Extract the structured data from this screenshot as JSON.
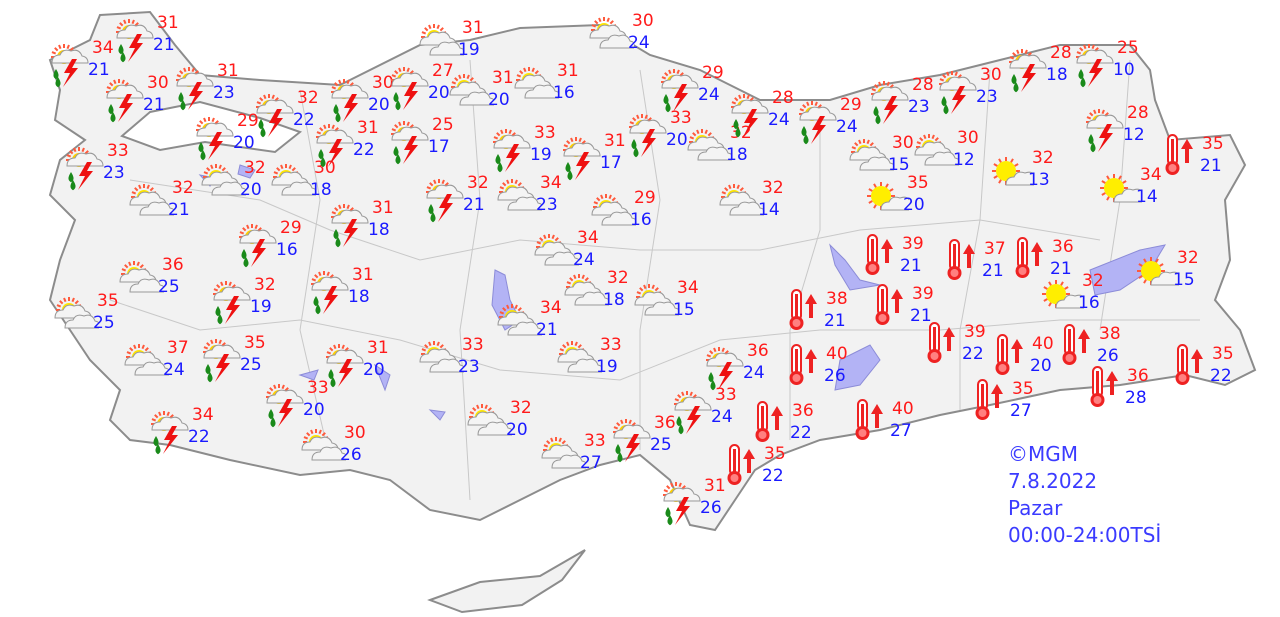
{
  "colors": {
    "high": "#ff1a1a",
    "low": "#1a1aff",
    "land": "#f2f2f2",
    "border": "#a0a0a0",
    "water": "#b3b3f5",
    "footer": "#3b3bff"
  },
  "icons": {
    "storm": "sun-cloud-thunder-rain-icon",
    "partly": "partly-cloudy-icon",
    "sunny": "mostly-sunny-icon",
    "hot": "hot-thermometer-icon"
  },
  "footer": {
    "copyright": "©MGM",
    "date": "7.8.2022",
    "day": "Pazar",
    "period": "00:00-24:00TSİ"
  },
  "stations": [
    {
      "type": "storm",
      "high": "34",
      "low": "21"
    },
    {
      "type": "storm",
      "high": "31",
      "low": "21"
    },
    {
      "type": "storm",
      "high": "30",
      "low": "21"
    },
    {
      "type": "storm",
      "high": "31",
      "low": "23"
    },
    {
      "type": "storm",
      "high": "29",
      "low": "20"
    },
    {
      "type": "storm",
      "high": "32",
      "low": "22"
    },
    {
      "type": "storm",
      "high": "33",
      "low": "23"
    },
    {
      "type": "partly",
      "high": "32",
      "low": "21"
    },
    {
      "type": "partly",
      "high": "32",
      "low": "20"
    },
    {
      "type": "partly",
      "high": "30",
      "low": "18"
    },
    {
      "type": "storm",
      "high": "31",
      "low": "18"
    },
    {
      "type": "storm",
      "high": "29",
      "low": "16"
    },
    {
      "type": "storm",
      "high": "30",
      "low": "20"
    },
    {
      "type": "storm",
      "high": "27",
      "low": "20"
    },
    {
      "type": "storm",
      "high": "31",
      "low": "22"
    },
    {
      "type": "storm",
      "high": "25",
      "low": "17"
    },
    {
      "type": "partly",
      "high": "31",
      "low": "19"
    },
    {
      "type": "partly",
      "high": "31",
      "low": "20"
    },
    {
      "type": "partly",
      "high": "31",
      "low": "16"
    },
    {
      "type": "storm",
      "high": "33",
      "low": "19"
    },
    {
      "type": "storm",
      "high": "32",
      "low": "21"
    },
    {
      "type": "partly",
      "high": "34",
      "low": "23"
    },
    {
      "type": "partly",
      "high": "30",
      "low": "24"
    },
    {
      "type": "storm",
      "high": "29",
      "low": "24"
    },
    {
      "type": "storm",
      "high": "33",
      "low": "20"
    },
    {
      "type": "partly",
      "high": "32",
      "low": "18"
    },
    {
      "type": "storm",
      "high": "31",
      "low": "17"
    },
    {
      "type": "partly",
      "high": "29",
      "low": "16"
    },
    {
      "type": "partly",
      "high": "32",
      "low": "14"
    },
    {
      "type": "partly",
      "high": "34",
      "low": "24"
    },
    {
      "type": "partly",
      "high": "32",
      "low": "18"
    },
    {
      "type": "partly",
      "high": "34",
      "low": "15"
    },
    {
      "type": "partly",
      "high": "34",
      "low": "21"
    },
    {
      "type": "partly",
      "high": "33",
      "low": "19"
    },
    {
      "type": "partly",
      "high": "33",
      "low": "23"
    },
    {
      "type": "partly",
      "high": "36",
      "low": "25"
    },
    {
      "type": "partly",
      "high": "35",
      "low": "25"
    },
    {
      "type": "storm",
      "high": "32",
      "low": "19"
    },
    {
      "type": "storm",
      "high": "31",
      "low": "18"
    },
    {
      "type": "partly",
      "high": "37",
      "low": "24"
    },
    {
      "type": "storm",
      "high": "35",
      "low": "25"
    },
    {
      "type": "storm",
      "high": "31",
      "low": "20"
    },
    {
      "type": "storm",
      "high": "33",
      "low": "20"
    },
    {
      "type": "storm",
      "high": "34",
      "low": "22"
    },
    {
      "type": "partly",
      "high": "30",
      "low": "26"
    },
    {
      "type": "partly",
      "high": "32",
      "low": "20"
    },
    {
      "type": "partly",
      "high": "33",
      "low": "27"
    },
    {
      "type": "storm",
      "high": "36",
      "low": "25"
    },
    {
      "type": "storm",
      "high": "33",
      "low": "24"
    },
    {
      "type": "storm",
      "high": "36",
      "low": "24"
    },
    {
      "type": "storm",
      "high": "31",
      "low": "26"
    },
    {
      "type": "hot",
      "high": "35",
      "low": "22"
    },
    {
      "type": "hot",
      "high": "36",
      "low": "22"
    },
    {
      "type": "hot",
      "high": "38",
      "low": "21"
    },
    {
      "type": "hot",
      "high": "40",
      "low": "26"
    },
    {
      "type": "hot",
      "high": "40",
      "low": "27"
    },
    {
      "type": "storm",
      "high": "28",
      "low": "24"
    },
    {
      "type": "storm",
      "high": "29",
      "low": "24"
    },
    {
      "type": "storm",
      "high": "28",
      "low": "23"
    },
    {
      "type": "storm",
      "high": "30",
      "low": "23"
    },
    {
      "type": "storm",
      "high": "28",
      "low": "18"
    },
    {
      "type": "storm",
      "high": "25",
      "low": "10"
    },
    {
      "type": "storm",
      "high": "28",
      "low": "12"
    },
    {
      "type": "hot",
      "high": "35",
      "low": "21"
    },
    {
      "type": "partly",
      "high": "30",
      "low": "15"
    },
    {
      "type": "partly",
      "high": "30",
      "low": "12"
    },
    {
      "type": "sunny",
      "high": "32",
      "low": "13"
    },
    {
      "type": "sunny",
      "high": "34",
      "low": "14"
    },
    {
      "type": "sunny",
      "high": "35",
      "low": "20"
    },
    {
      "type": "hot",
      "high": "39",
      "low": "21"
    },
    {
      "type": "hot",
      "high": "39",
      "low": "21"
    },
    {
      "type": "hot",
      "high": "37",
      "low": "21"
    },
    {
      "type": "hot",
      "high": "36",
      "low": "21"
    },
    {
      "type": "sunny",
      "high": "32",
      "low": "16"
    },
    {
      "type": "sunny",
      "high": "32",
      "low": "15"
    },
    {
      "type": "hot",
      "high": "39",
      "low": "22"
    },
    {
      "type": "hot",
      "high": "40",
      "low": "20"
    },
    {
      "type": "hot",
      "high": "38",
      "low": "26"
    },
    {
      "type": "hot",
      "high": "35",
      "low": "27"
    },
    {
      "type": "hot",
      "high": "36",
      "low": "28"
    },
    {
      "type": "hot",
      "high": "35",
      "low": "22"
    }
  ]
}
